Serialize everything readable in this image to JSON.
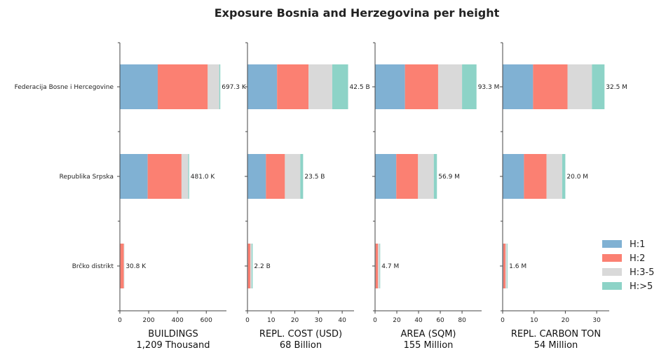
{
  "chart_data": {
    "type": "bar",
    "orientation": "horizontal",
    "stacked": true,
    "title": "Exposure Bosnia and Herzegovina per height",
    "categories": [
      "Federacija Bosne i Hercegovine",
      "Republika Srpska",
      "Brčko distrikt"
    ],
    "series_names": [
      "H:1",
      "H:2",
      "H:3-5",
      "H:>5"
    ],
    "colors": [
      "#80b1d3",
      "#fb8072",
      "#d9d9d9",
      "#8dd3c7"
    ],
    "legend_position": "bottom-right",
    "panels": [
      {
        "xlabel": "BUILDINGS",
        "total": "1,209 Thousand",
        "xlim": [
          0,
          740
        ],
        "ticks": [
          0,
          200,
          400,
          600
        ],
        "tick_labels": [
          "0",
          "200",
          "400",
          "600"
        ],
        "values": [
          [
            263,
            347,
            80,
            7.3
          ],
          [
            193,
            235,
            47,
            6
          ],
          [
            3,
            24,
            3,
            0.8
          ]
        ],
        "bar_labels": [
          "697.3 K",
          "481.0 K",
          "30.8 K"
        ]
      },
      {
        "xlabel": "REPL. COST (USD)",
        "total": "68 Billion",
        "xlim": [
          0,
          45
        ],
        "ticks": [
          0,
          10,
          20,
          30,
          40
        ],
        "tick_labels": [
          "0",
          "10",
          "20",
          "30",
          "40"
        ],
        "values": [
          [
            12.5,
            13.3,
            10,
            6.7
          ],
          [
            7.8,
            8,
            6.5,
            1.2
          ],
          [
            0.2,
            1,
            0.6,
            0.4
          ]
        ],
        "bar_labels": [
          "42.5 B",
          "23.5 B",
          "2.2 B"
        ]
      },
      {
        "xlabel": "AREA (SQM)",
        "total": "155 Million",
        "xlim": [
          0,
          98
        ],
        "ticks": [
          0,
          20,
          40,
          60,
          80
        ],
        "tick_labels": [
          "0",
          "20",
          "40",
          "60",
          "80"
        ],
        "values": [
          [
            27.5,
            30.5,
            22,
            13.3
          ],
          [
            19.5,
            20,
            14.5,
            2.9
          ],
          [
            0.5,
            2.2,
            1.5,
            0.5
          ]
        ],
        "bar_labels": [
          "93.3 M",
          "56.9 M",
          "4.7 M"
        ]
      },
      {
        "xlabel": "REPL. CARBON TON",
        "total": "54 Million",
        "xlim": [
          0,
          34
        ],
        "ticks": [
          0,
          10,
          20,
          30
        ],
        "tick_labels": [
          "0",
          "10",
          "20",
          "30"
        ],
        "values": [
          [
            9.7,
            11,
            7.8,
            4
          ],
          [
            6.8,
            7.2,
            5,
            1
          ],
          [
            0.2,
            0.7,
            0.5,
            0.2
          ]
        ],
        "bar_labels": [
          "32.5 M",
          "20.0 M",
          "1.6 M"
        ]
      }
    ]
  }
}
